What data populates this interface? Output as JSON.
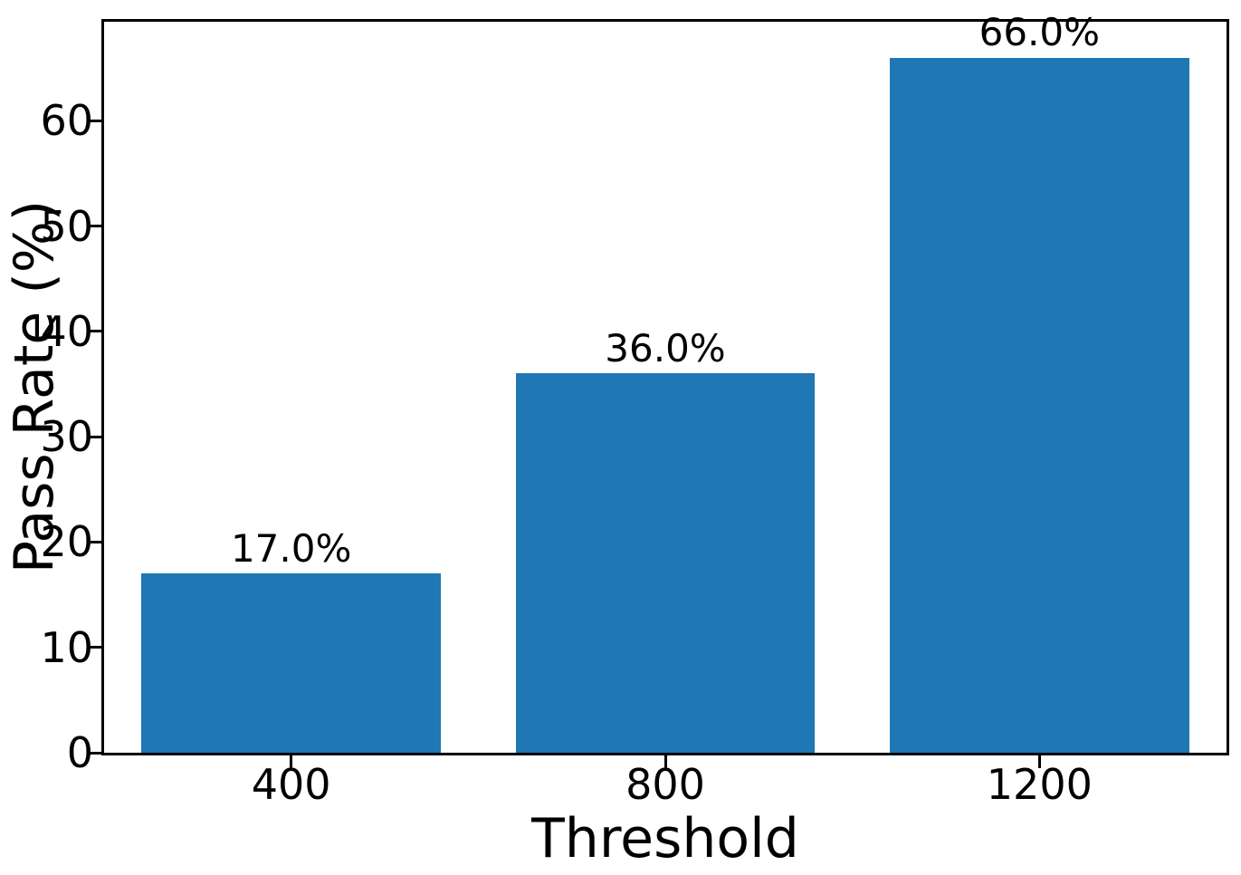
{
  "figure": {
    "background": "#ffffff",
    "spine_color": "#000000",
    "text_color": "#000000"
  },
  "chart_data": {
    "type": "bar",
    "title": "",
    "xlabel": "Threshold",
    "ylabel": "Pass Rate (%)",
    "categories": [
      "400",
      "800",
      "1200"
    ],
    "values": [
      17.0,
      36.0,
      66.0
    ],
    "bar_labels": [
      "17.0%",
      "36.0%",
      "66.0%"
    ],
    "series_color": "#1f77b4",
    "bar_width_fraction": 0.8,
    "yticks": [
      0,
      10,
      20,
      30,
      40,
      50,
      60
    ],
    "ylim": [
      0,
      69.4
    ],
    "grid": false,
    "legend": "none"
  }
}
